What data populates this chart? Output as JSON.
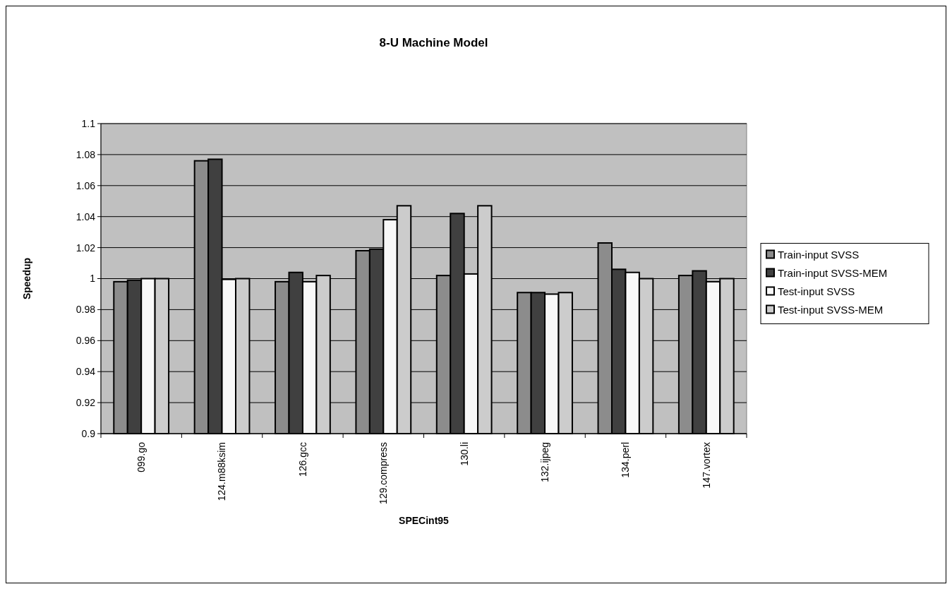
{
  "chart_data": {
    "type": "bar",
    "title": "8-U Machine Model",
    "xlabel": "SPECint95",
    "ylabel": "Speedup",
    "categories": [
      "099.go",
      "124.m88ksim",
      "126.gcc",
      "129.compress",
      "130.li",
      "132.ijpeg",
      "134.perl",
      "147.vortex"
    ],
    "series": [
      {
        "name": "Train-input SVSS",
        "color": "#8c8c8c",
        "values": [
          0.998,
          1.076,
          0.998,
          1.018,
          1.002,
          0.991,
          1.023,
          1.002
        ]
      },
      {
        "name": "Train-input SVSS-MEM",
        "color": "#404040",
        "values": [
          0.999,
          1.077,
          1.004,
          1.019,
          1.042,
          0.991,
          1.006,
          1.005
        ]
      },
      {
        "name": "Test-input SVSS",
        "color": "#f8f8f8",
        "values": [
          1.0,
          0.9995,
          0.998,
          1.038,
          1.003,
          0.99,
          1.004,
          0.998
        ]
      },
      {
        "name": "Test-input SVSS-MEM",
        "color": "#cccccc",
        "values": [
          1.0,
          1.0,
          1.002,
          1.047,
          1.047,
          0.991,
          1.0,
          1.0
        ]
      }
    ],
    "ylim": [
      0.9,
      1.1
    ],
    "yticks": [
      0.9,
      0.92,
      0.94,
      0.96,
      0.98,
      1,
      1.02,
      1.04,
      1.06,
      1.08,
      1.1
    ],
    "grid": "y",
    "legend": "right"
  }
}
